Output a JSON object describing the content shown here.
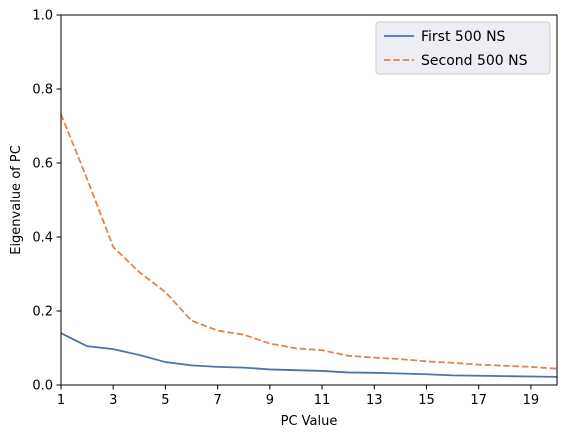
{
  "chart_data": {
    "type": "line",
    "title": "",
    "xlabel": "PC Value",
    "ylabel": "Eigenvalue of PC",
    "xlim": [
      1,
      20
    ],
    "ylim": [
      0,
      1.0
    ],
    "x_ticks": [
      1,
      3,
      5,
      7,
      9,
      11,
      13,
      15,
      17,
      19
    ],
    "y_ticks": [
      0.0,
      0.2,
      0.4,
      0.6,
      0.8,
      1.0
    ],
    "x_tick_labels": [
      "1",
      "3",
      "5",
      "7",
      "9",
      "11",
      "13",
      "15",
      "17",
      "19"
    ],
    "y_tick_labels": [
      "0.0",
      "0.2",
      "0.4",
      "0.6",
      "0.8",
      "1.0"
    ],
    "grid": false,
    "legend_position": "top-right",
    "x": [
      1,
      2,
      3,
      4,
      5,
      6,
      7,
      8,
      9,
      10,
      11,
      12,
      13,
      14,
      15,
      16,
      17,
      18,
      19,
      20
    ],
    "series": [
      {
        "name": "First 500 NS",
        "color": "#4c72b0",
        "style": "solid",
        "values": [
          0.14,
          0.105,
          0.097,
          0.081,
          0.062,
          0.053,
          0.049,
          0.047,
          0.042,
          0.04,
          0.038,
          0.034,
          0.033,
          0.031,
          0.029,
          0.026,
          0.025,
          0.024,
          0.023,
          0.022
        ]
      },
      {
        "name": "Second 500 NS",
        "color": "#dd8452",
        "style": "dashed",
        "values": [
          0.732,
          0.557,
          0.373,
          0.305,
          0.251,
          0.174,
          0.147,
          0.136,
          0.112,
          0.099,
          0.094,
          0.079,
          0.074,
          0.07,
          0.064,
          0.06,
          0.055,
          0.052,
          0.049,
          0.044
        ]
      }
    ]
  }
}
